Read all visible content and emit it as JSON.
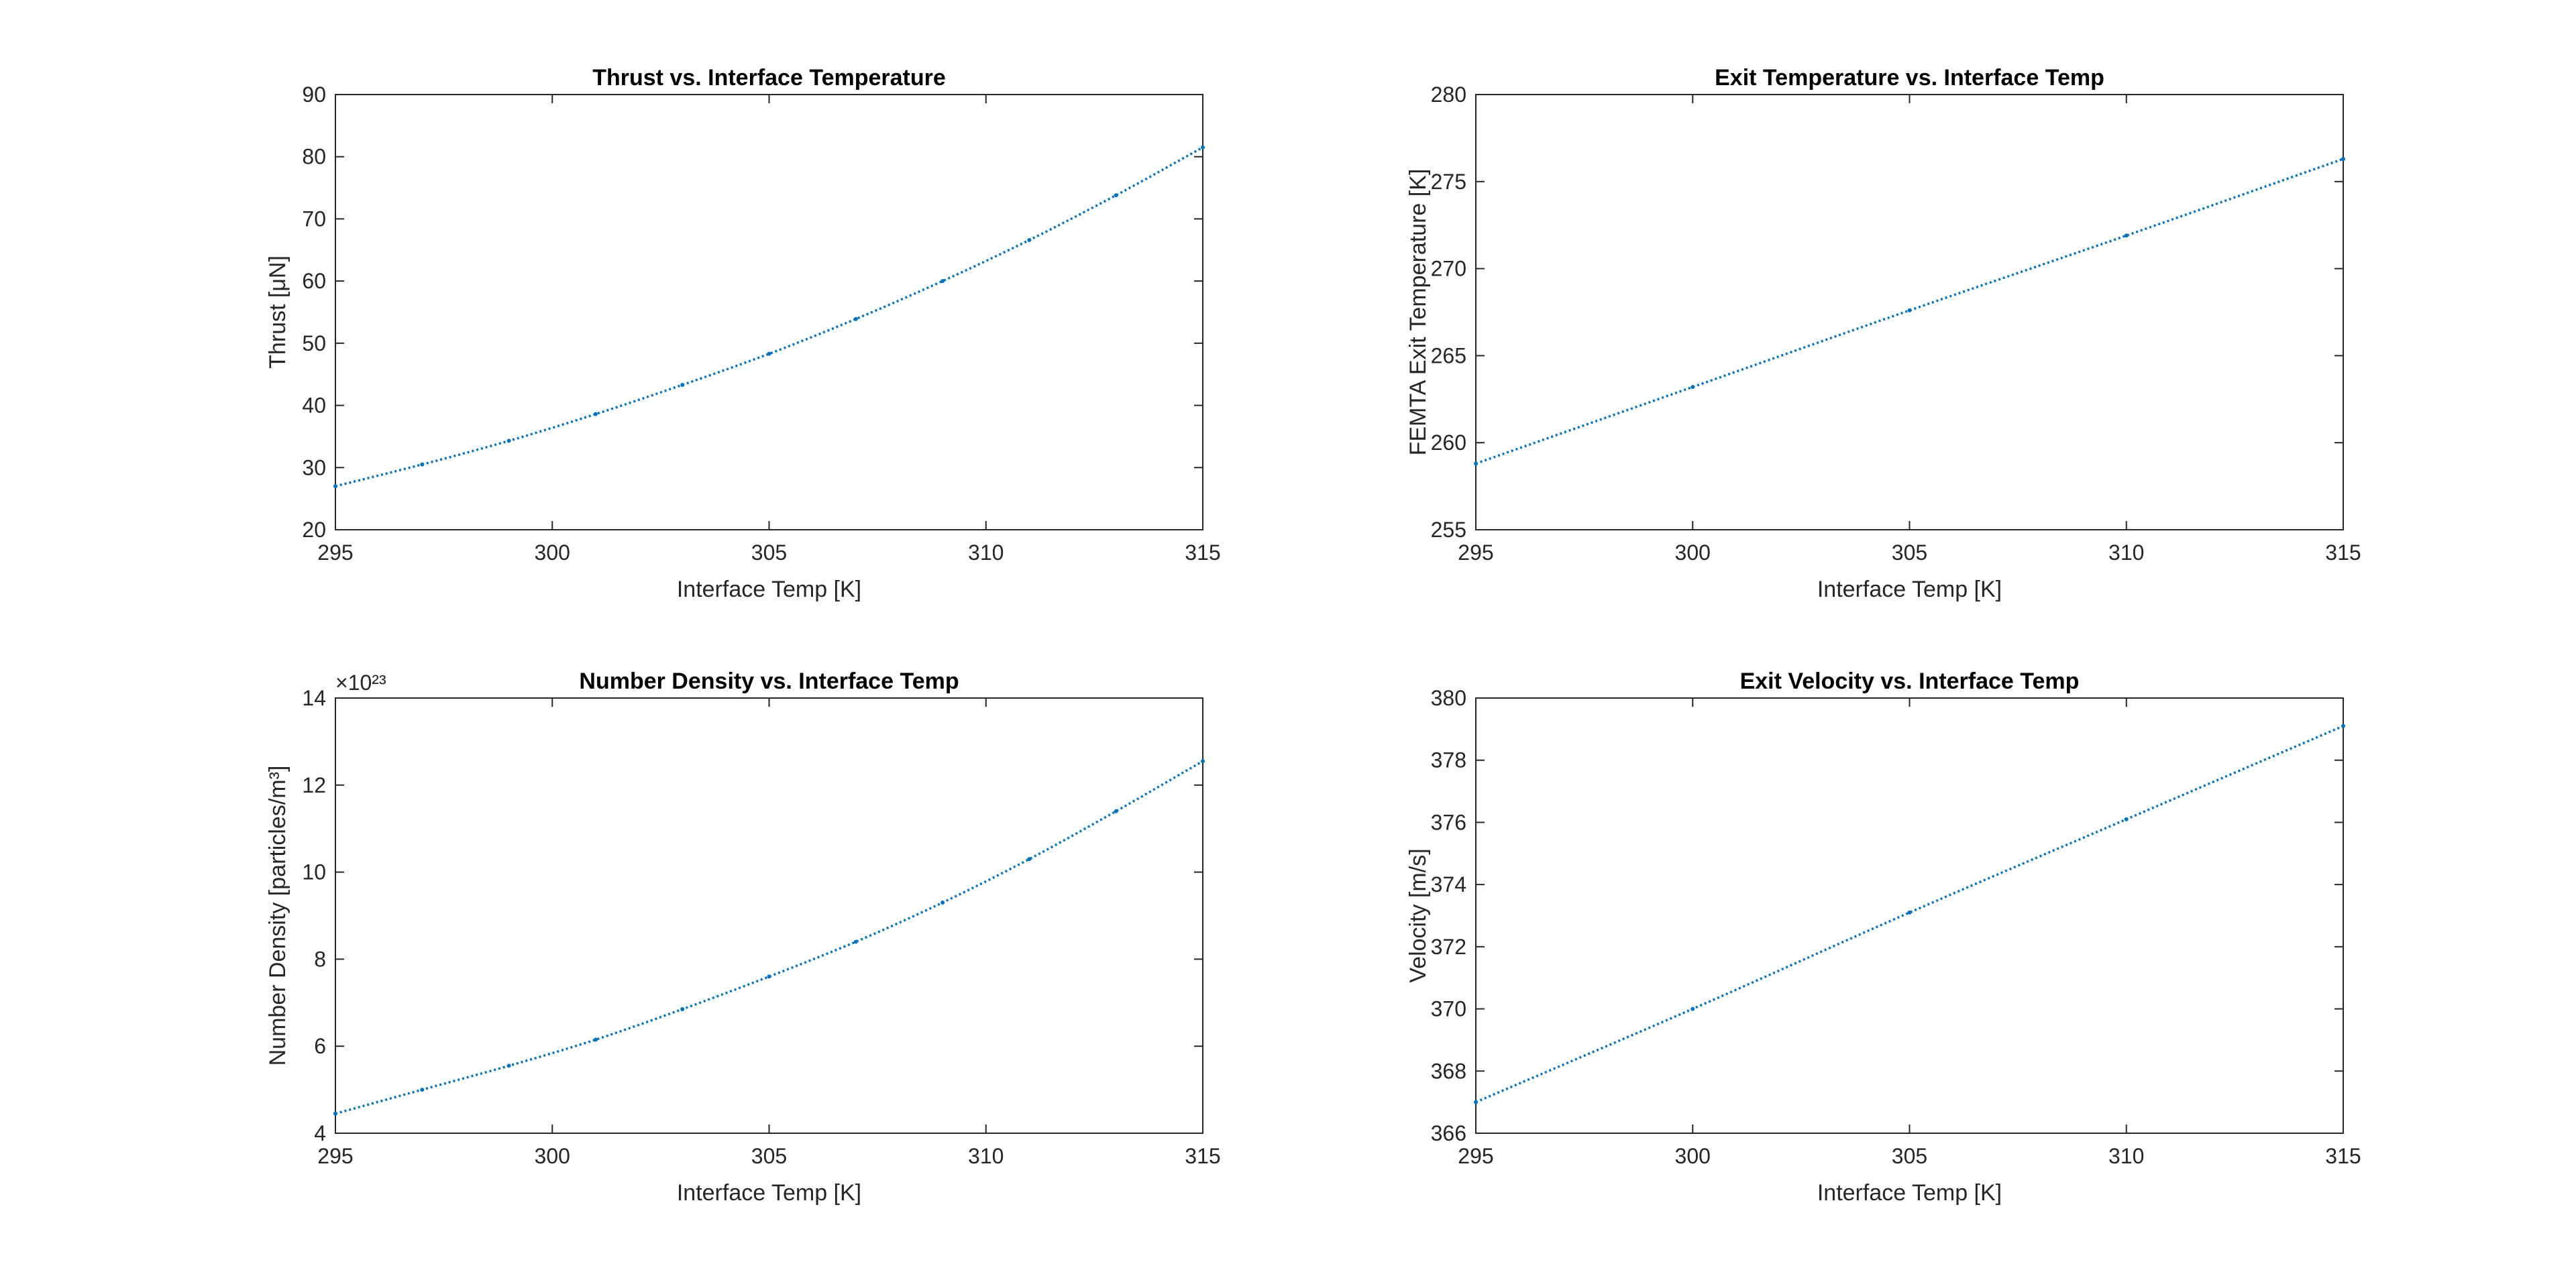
{
  "chart_data": [
    {
      "type": "line",
      "title": "Thrust vs. Interface Temperature",
      "xlabel": "Interface Temp [K]",
      "ylabel": "Thrust [μN]",
      "xlim": [
        295,
        315
      ],
      "ylim": [
        20,
        90
      ],
      "xticks": [
        "295",
        "300",
        "305",
        "310",
        "315"
      ],
      "yticks": [
        "20",
        "30",
        "40",
        "50",
        "60",
        "70",
        "80",
        "90"
      ],
      "exponent": "",
      "color": "#0072BD",
      "x": [
        295,
        297,
        299,
        301,
        303,
        305,
        307,
        309,
        311,
        313,
        315
      ],
      "y": [
        27.0,
        30.5,
        34.3,
        38.6,
        43.3,
        48.3,
        53.9,
        60.0,
        66.6,
        73.8,
        81.5
      ]
    },
    {
      "type": "line",
      "title": "Exit Temperature vs. Interface Temp",
      "xlabel": "Interface Temp [K]",
      "ylabel": "FEMTA Exit Temperature [K]",
      "xlim": [
        295,
        315
      ],
      "ylim": [
        255,
        280
      ],
      "xticks": [
        "295",
        "300",
        "305",
        "310",
        "315"
      ],
      "yticks": [
        "255",
        "260",
        "265",
        "270",
        "275",
        "280"
      ],
      "exponent": "",
      "color": "#0072BD",
      "x": [
        295,
        300,
        305,
        310,
        315
      ],
      "y": [
        258.8,
        263.2,
        267.6,
        271.9,
        276.3
      ]
    },
    {
      "type": "line",
      "title": "Number Density vs. Interface Temp",
      "xlabel": "Interface Temp [K]",
      "ylabel": "Number Density [particles/m³]",
      "xlim": [
        295,
        315
      ],
      "ylim": [
        4,
        14
      ],
      "xticks": [
        "295",
        "300",
        "305",
        "310",
        "315"
      ],
      "yticks": [
        "4",
        "6",
        "8",
        "10",
        "12",
        "14"
      ],
      "exponent": "×10²³",
      "color": "#0072BD",
      "x": [
        295,
        297,
        299,
        301,
        303,
        305,
        307,
        309,
        311,
        313,
        315
      ],
      "y": [
        4.45,
        5.0,
        5.55,
        6.15,
        6.85,
        7.6,
        8.4,
        9.3,
        10.3,
        11.4,
        12.55
      ]
    },
    {
      "type": "line",
      "title": "Exit Velocity vs. Interface Temp",
      "xlabel": "Interface Temp [K]",
      "ylabel": "Velocity [m/s]",
      "xlim": [
        295,
        315
      ],
      "ylim": [
        366,
        380
      ],
      "xticks": [
        "295",
        "300",
        "305",
        "310",
        "315"
      ],
      "yticks": [
        "366",
        "368",
        "370",
        "372",
        "374",
        "376",
        "378",
        "380"
      ],
      "exponent": "",
      "color": "#0072BD",
      "x": [
        295,
        300,
        305,
        310,
        315
      ],
      "y": [
        367.0,
        370.0,
        373.1,
        376.1,
        379.1
      ]
    }
  ]
}
